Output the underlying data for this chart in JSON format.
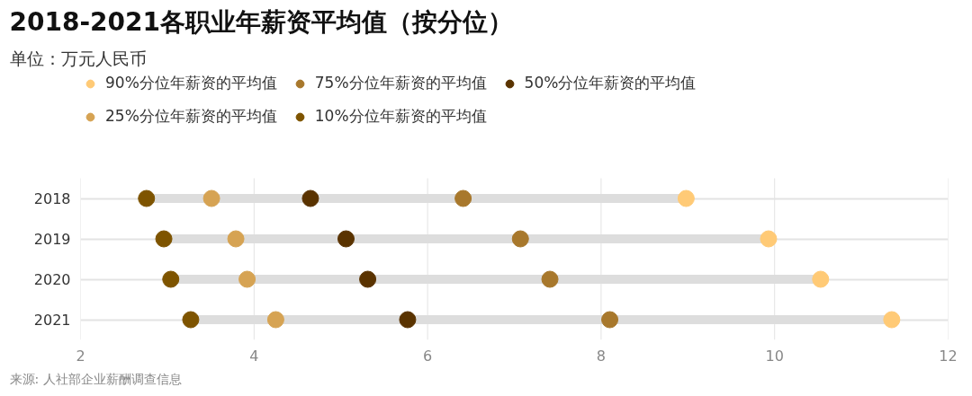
{
  "chart_data": {
    "type": "scatter",
    "orientation": "horizontal",
    "title": "2018-2021各职业年薪资平均值（按分位）",
    "subtitle": "单位：万元人民币",
    "categories": [
      "2018",
      "2019",
      "2020",
      "2021"
    ],
    "series": [
      {
        "name": "90%分位年薪资的平均值",
        "color": "#ffca76",
        "values": [
          8.98,
          9.93,
          10.53,
          11.35
        ]
      },
      {
        "name": "75%分位年薪资的平均值",
        "color": "#a8782c",
        "values": [
          6.41,
          7.07,
          7.41,
          8.1
        ]
      },
      {
        "name": "50%分位年薪资的平均值",
        "color": "#5a3300",
        "values": [
          4.65,
          5.06,
          5.31,
          5.77
        ]
      },
      {
        "name": "25%分位年薪资的平均值",
        "color": "#d6a353",
        "values": [
          3.51,
          3.79,
          3.92,
          4.25
        ]
      },
      {
        "name": "10%分位年薪资的平均值",
        "color": "#7e5400",
        "values": [
          2.76,
          2.96,
          3.04,
          3.27
        ]
      }
    ],
    "xlim": [
      2,
      12
    ],
    "xticks": [
      2,
      4,
      6,
      8,
      10,
      12
    ],
    "grid": true,
    "legend": "top",
    "marker": "circle",
    "annotations": [
      "来源: 人社部企业薪酬调查信息"
    ]
  }
}
